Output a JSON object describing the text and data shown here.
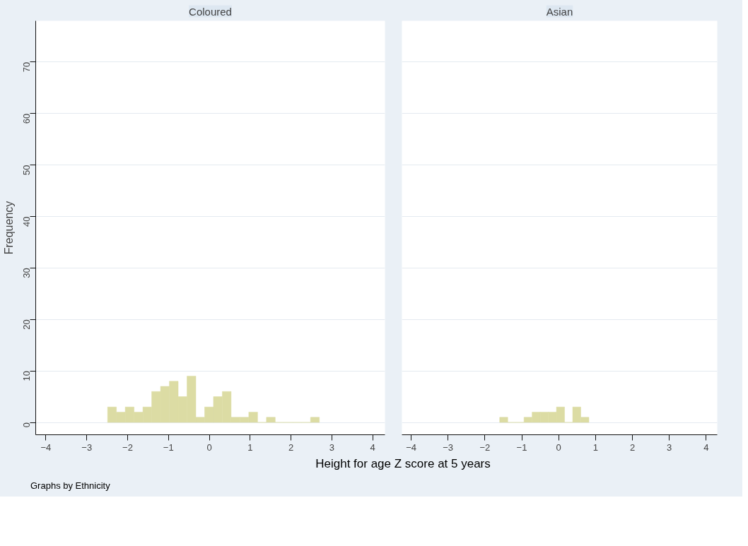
{
  "chart_data": [
    {
      "type": "histogram",
      "title": "Coloured",
      "xlabel": "Height for age Z score at 5 years",
      "ylabel": "Frequency",
      "annotations": [
        "Graphs by Ethnicity"
      ],
      "color": "#dcdca4",
      "bins": [
        -2.49,
        -2.274,
        -2.058,
        -1.842,
        -1.626,
        -1.41,
        -1.194,
        -0.978,
        -0.762,
        -0.546,
        -0.33,
        -0.114,
        0.102,
        0.318,
        0.534,
        0.75,
        0.966,
        1.182,
        1.398,
        1.614,
        1.83,
        2.046,
        2.262,
        2.478,
        2.694
      ],
      "values": [
        3,
        2,
        3,
        2,
        3,
        6,
        7,
        8,
        5,
        9,
        1,
        3,
        5,
        6,
        1,
        1,
        2,
        0,
        1,
        0,
        0,
        0,
        0,
        1
      ],
      "xlim": [
        -4.25,
        4.3
      ],
      "ylim": [
        -2.4,
        78
      ],
      "xticks": [
        -4,
        -3,
        -2,
        -1,
        0,
        1,
        2,
        3,
        4
      ],
      "yticks": [
        0,
        10,
        20,
        30,
        40,
        50,
        60,
        70
      ],
      "grid": "y"
    },
    {
      "type": "histogram",
      "title": "Asian",
      "color": "#dcdca4",
      "bins": [
        -1.6,
        -1.38,
        -1.16,
        -0.94,
        -0.72,
        -0.5,
        -0.28,
        -0.06,
        0.16,
        0.38,
        0.6,
        0.82
      ],
      "values": [
        1,
        0,
        0,
        1,
        2,
        2,
        2,
        3,
        0,
        3,
        1
      ],
      "xlim": [
        -4.25,
        4.3
      ],
      "ylim": [
        -2.4,
        78
      ],
      "xticks": [
        -4,
        -3,
        -2,
        -1,
        0,
        1,
        2,
        3,
        4
      ],
      "yticks": [
        0,
        10,
        20,
        30,
        40,
        50,
        60,
        70
      ],
      "grid": "y",
      "tick_labels": "x"
    }
  ]
}
